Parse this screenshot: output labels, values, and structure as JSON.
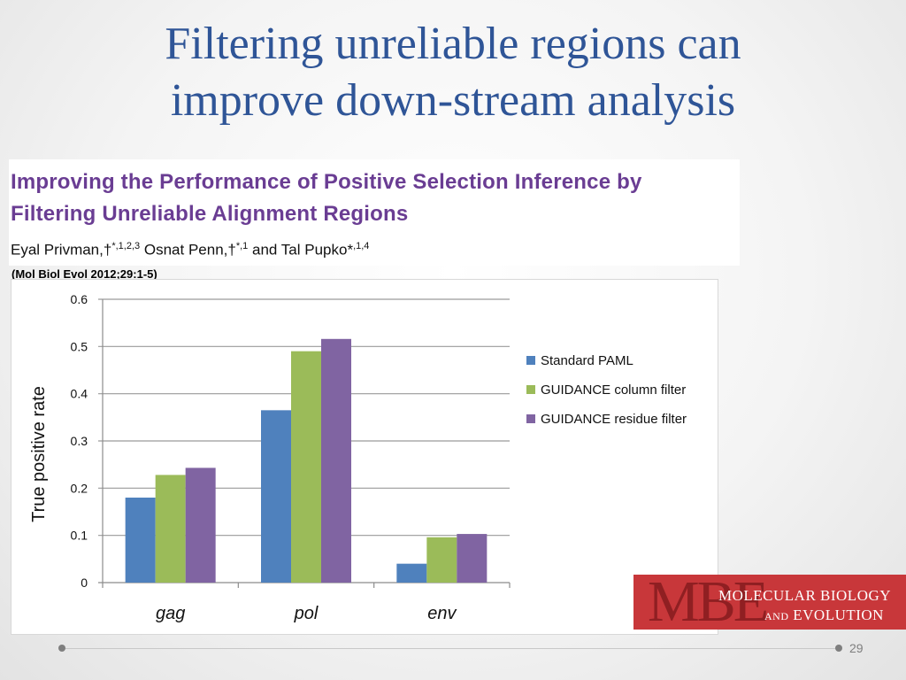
{
  "slide": {
    "title_lines": [
      "Filtering unreliable regions can",
      "improve down-stream analysis"
    ],
    "page_number": "29"
  },
  "paper": {
    "title_lines": [
      "Improving the Performance of Positive Selection Inference by",
      "Filtering Unreliable Alignment Regions"
    ],
    "authors": [
      {
        "name": "Eyal Privman,†",
        "sup": "*,1,2,3"
      },
      {
        "name": " Osnat Penn,†",
        "sup": "*,1"
      },
      {
        "name": " and Tal Pupko*",
        "sup": ",1,4"
      }
    ],
    "citation": "(Mol Biol Evol 2012;29:1-5)"
  },
  "logo": {
    "letters": "MBE",
    "line1": "MOLECULAR BIOLOGY",
    "line2_small": "AND",
    "line2": " EVOLUTION"
  },
  "colors": {
    "title": "#2f5597",
    "paper_title": "#6a3d93",
    "logo_bg": "#c8373a"
  },
  "chart_data": {
    "type": "bar",
    "categories": [
      "gag",
      "pol",
      "env"
    ],
    "series": [
      {
        "name": "Standard PAML",
        "color": "#4f81bd",
        "values": [
          0.18,
          0.365,
          0.04
        ]
      },
      {
        "name": "GUIDANCE column filter",
        "color": "#9bbb59",
        "values": [
          0.228,
          0.49,
          0.096
        ]
      },
      {
        "name": "GUIDANCE residue filter",
        "color": "#8064a2",
        "values": [
          0.243,
          0.516,
          0.103
        ]
      }
    ],
    "title": "",
    "xlabel": "",
    "ylabel": "True positive rate",
    "ylim": [
      0,
      0.6
    ],
    "yticks": [
      "0",
      "0.1",
      "0.2",
      "0.3",
      "0.4",
      "0.5",
      "0.6"
    ],
    "grid": true,
    "legend": "right"
  }
}
